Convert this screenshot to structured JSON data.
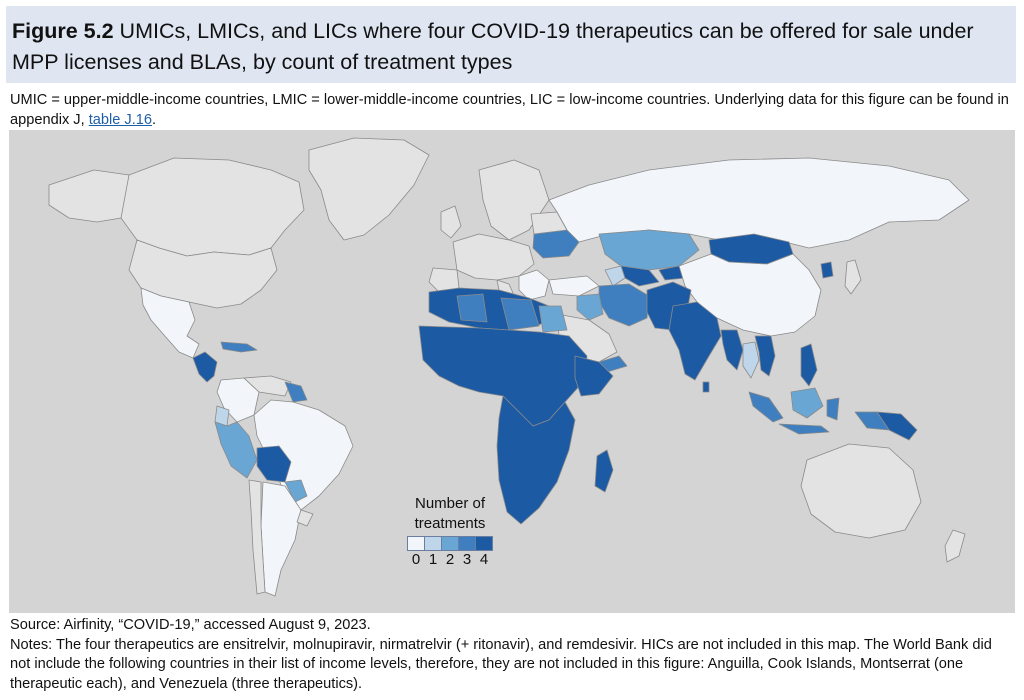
{
  "figure": {
    "label": "Figure 5.2",
    "title": "UMICs, LMICs, and LICs where four COVID-19 therapeutics can be offered for sale under MPP licenses and BLAs, by count of treatment types"
  },
  "description": {
    "text": "UMIC = upper-middle-income countries, LMIC = lower-middle-income countries, LIC = low-income countries. Underlying data for this figure can be found in appendix J, ",
    "link_text": "table J.16",
    "suffix": "."
  },
  "legend": {
    "title_line1": "Number of",
    "title_line2": "treatments",
    "items": [
      {
        "label": "0",
        "color": "#f2f6fb"
      },
      {
        "label": "1",
        "color": "#bfd6ea"
      },
      {
        "label": "2",
        "color": "#6aa6d3"
      },
      {
        "label": "3",
        "color": "#3f7fbf"
      },
      {
        "label": "4",
        "color": "#1c5aa3"
      }
    ]
  },
  "map_colors": {
    "ocean": "#d4d4d4",
    "not_included": "#e3e3e3",
    "border": "#8a8a8a"
  },
  "source": "Source: Airfinity, “COVID-19,” accessed August 9, 2023.",
  "notes": "Notes: The four therapeutics are ensitrelvir, molnupiravir, nirmatrelvir (+ ritonavir), and remdesivir. HICs are not included in this map. The World Bank did not include the following countries in their list of income levels, therefore, they are not included in this figure: Anguilla, Cook Islands, Montserrat (one therapeutic each), and Venezuela (three therapeutics)."
}
